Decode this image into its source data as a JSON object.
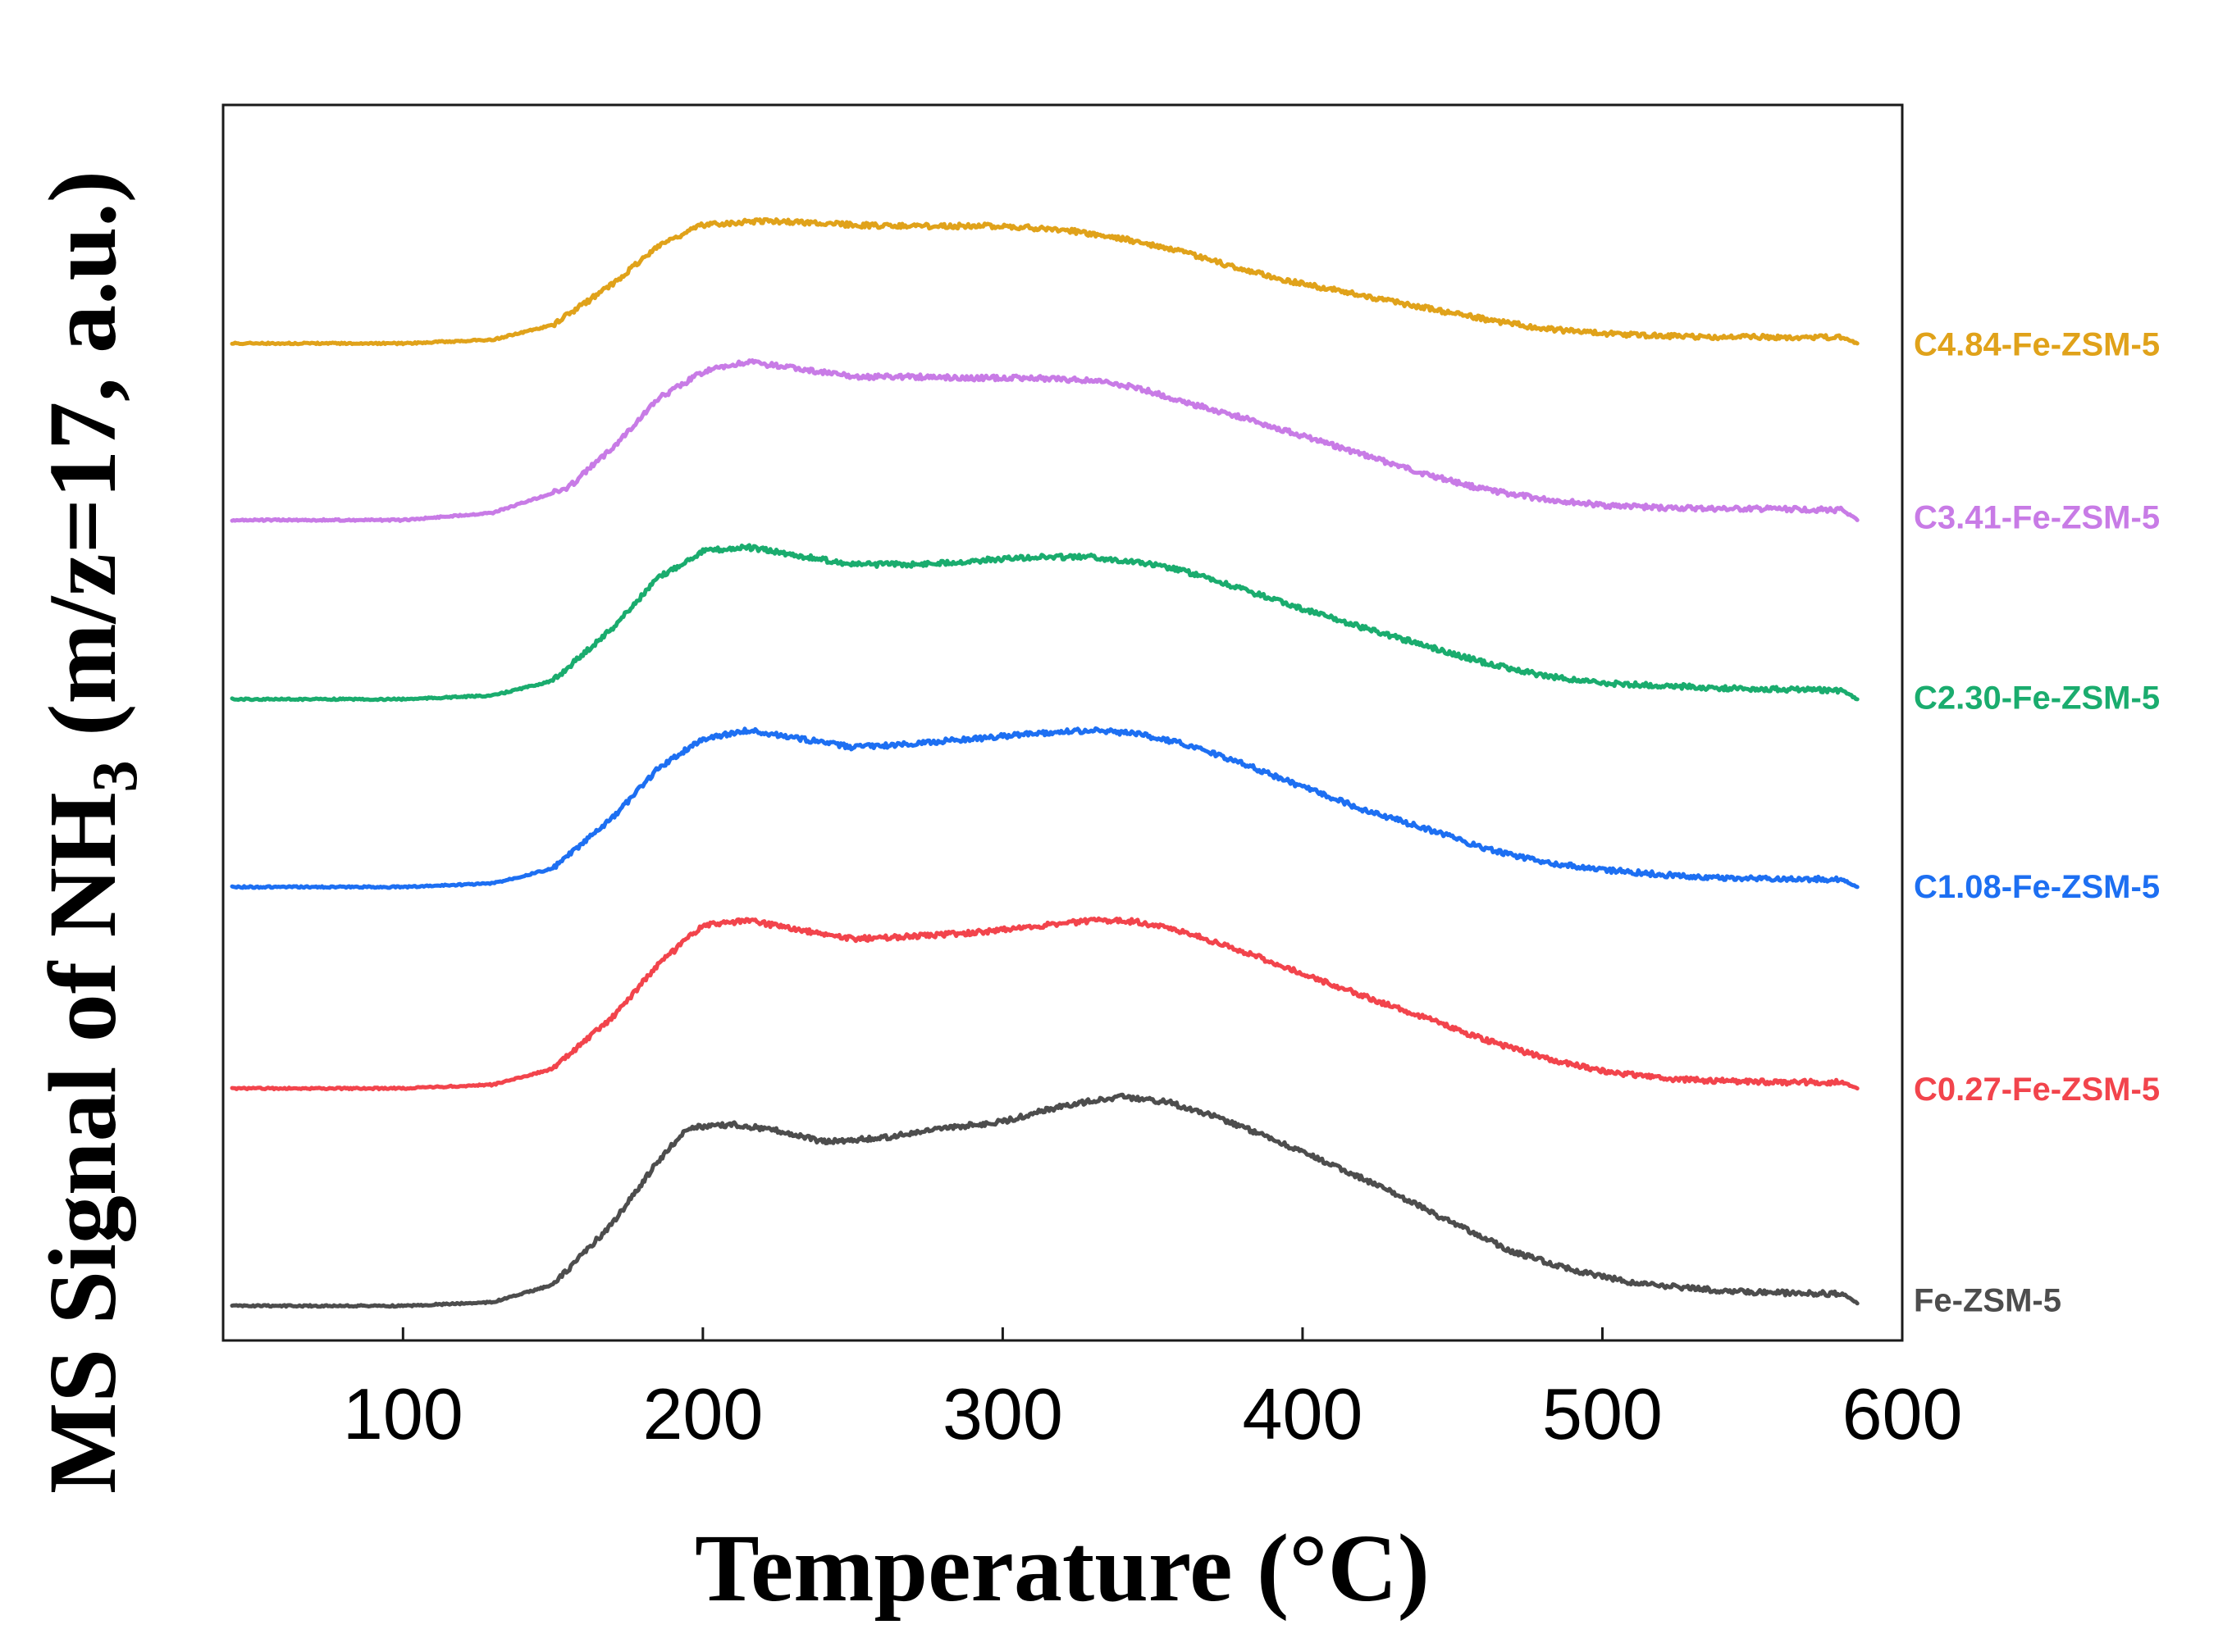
{
  "chart_data": {
    "type": "line",
    "xlabel": "Temperature (°C)",
    "ylabel_parts": [
      "MS Signal of  NH",
      "3",
      " (m/z=17, a.u.)"
    ],
    "xlim": [
      40,
      600
    ],
    "ylim": [
      0,
      10
    ],
    "xticks": [
      100,
      200,
      300,
      400,
      500,
      600
    ],
    "grid": false,
    "legend": "right-inline",
    "series": [
      {
        "name": "Fe-ZSM-5",
        "color": "#4d4d4d",
        "points": [
          [
            43,
            0.28
          ],
          [
            100,
            0.28
          ],
          [
            130,
            0.31
          ],
          [
            150,
            0.45
          ],
          [
            170,
            0.95
          ],
          [
            185,
            1.45
          ],
          [
            195,
            1.72
          ],
          [
            210,
            1.75
          ],
          [
            225,
            1.7
          ],
          [
            240,
            1.61
          ],
          [
            260,
            1.64
          ],
          [
            285,
            1.73
          ],
          [
            300,
            1.77
          ],
          [
            315,
            1.87
          ],
          [
            330,
            1.94
          ],
          [
            340,
            1.97
          ],
          [
            355,
            1.93
          ],
          [
            370,
            1.82
          ],
          [
            390,
            1.63
          ],
          [
            410,
            1.42
          ],
          [
            430,
            1.2
          ],
          [
            450,
            0.95
          ],
          [
            470,
            0.72
          ],
          [
            490,
            0.57
          ],
          [
            510,
            0.47
          ],
          [
            530,
            0.42
          ],
          [
            550,
            0.39
          ],
          [
            570,
            0.38
          ],
          [
            580,
            0.38
          ],
          [
            585,
            0.3
          ]
        ]
      },
      {
        "name": "C0.27-Fe-ZSM-5",
        "color": "#f2444c",
        "points": [
          [
            43,
            2.04
          ],
          [
            100,
            2.04
          ],
          [
            130,
            2.07
          ],
          [
            150,
            2.2
          ],
          [
            170,
            2.62
          ],
          [
            185,
            3.04
          ],
          [
            200,
            3.36
          ],
          [
            215,
            3.4
          ],
          [
            230,
            3.33
          ],
          [
            250,
            3.25
          ],
          [
            270,
            3.27
          ],
          [
            290,
            3.3
          ],
          [
            310,
            3.35
          ],
          [
            330,
            3.4
          ],
          [
            345,
            3.39
          ],
          [
            360,
            3.31
          ],
          [
            380,
            3.15
          ],
          [
            400,
            2.97
          ],
          [
            420,
            2.79
          ],
          [
            440,
            2.62
          ],
          [
            460,
            2.44
          ],
          [
            480,
            2.29
          ],
          [
            500,
            2.18
          ],
          [
            520,
            2.12
          ],
          [
            540,
            2.1
          ],
          [
            560,
            2.09
          ],
          [
            580,
            2.09
          ],
          [
            585,
            2.04
          ]
        ]
      },
      {
        "name": "C1.08-Fe-ZSM-5",
        "color": "#1d6ff2",
        "points": [
          [
            43,
            3.67
          ],
          [
            100,
            3.67
          ],
          [
            130,
            3.7
          ],
          [
            150,
            3.82
          ],
          [
            170,
            4.23
          ],
          [
            185,
            4.63
          ],
          [
            200,
            4.87
          ],
          [
            215,
            4.94
          ],
          [
            230,
            4.88
          ],
          [
            250,
            4.8
          ],
          [
            270,
            4.83
          ],
          [
            290,
            4.87
          ],
          [
            310,
            4.91
          ],
          [
            330,
            4.94
          ],
          [
            345,
            4.91
          ],
          [
            360,
            4.83
          ],
          [
            380,
            4.67
          ],
          [
            400,
            4.48
          ],
          [
            420,
            4.3
          ],
          [
            440,
            4.15
          ],
          [
            460,
            3.99
          ],
          [
            480,
            3.87
          ],
          [
            500,
            3.81
          ],
          [
            520,
            3.77
          ],
          [
            540,
            3.74
          ],
          [
            560,
            3.74
          ],
          [
            580,
            3.73
          ],
          [
            585,
            3.67
          ]
        ]
      },
      {
        "name": "C2.30-Fe-ZSM-5",
        "color": "#1aac6e",
        "points": [
          [
            43,
            5.19
          ],
          [
            100,
            5.19
          ],
          [
            130,
            5.22
          ],
          [
            150,
            5.34
          ],
          [
            170,
            5.77
          ],
          [
            185,
            6.17
          ],
          [
            200,
            6.39
          ],
          [
            215,
            6.42
          ],
          [
            230,
            6.36
          ],
          [
            250,
            6.28
          ],
          [
            270,
            6.28
          ],
          [
            290,
            6.31
          ],
          [
            310,
            6.34
          ],
          [
            330,
            6.34
          ],
          [
            345,
            6.3
          ],
          [
            360,
            6.23
          ],
          [
            380,
            6.08
          ],
          [
            400,
            5.92
          ],
          [
            420,
            5.77
          ],
          [
            440,
            5.63
          ],
          [
            460,
            5.49
          ],
          [
            480,
            5.38
          ],
          [
            500,
            5.32
          ],
          [
            520,
            5.3
          ],
          [
            540,
            5.28
          ],
          [
            560,
            5.27
          ],
          [
            580,
            5.26
          ],
          [
            585,
            5.19
          ]
        ]
      },
      {
        "name": "C3.41-Fe-ZSM-5",
        "color": "#c87be6",
        "points": [
          [
            43,
            6.64
          ],
          [
            100,
            6.64
          ],
          [
            130,
            6.7
          ],
          [
            155,
            6.9
          ],
          [
            170,
            7.23
          ],
          [
            185,
            7.62
          ],
          [
            200,
            7.84
          ],
          [
            215,
            7.92
          ],
          [
            230,
            7.87
          ],
          [
            250,
            7.8
          ],
          [
            270,
            7.8
          ],
          [
            290,
            7.79
          ],
          [
            310,
            7.79
          ],
          [
            330,
            7.77
          ],
          [
            345,
            7.71
          ],
          [
            360,
            7.6
          ],
          [
            380,
            7.47
          ],
          [
            400,
            7.32
          ],
          [
            420,
            7.17
          ],
          [
            440,
            7.02
          ],
          [
            460,
            6.89
          ],
          [
            480,
            6.81
          ],
          [
            500,
            6.76
          ],
          [
            520,
            6.74
          ],
          [
            540,
            6.73
          ],
          [
            560,
            6.73
          ],
          [
            580,
            6.72
          ],
          [
            585,
            6.64
          ]
        ]
      },
      {
        "name": "C4.84-Fe-ZSM-5",
        "color": "#e0a21a",
        "points": [
          [
            43,
            8.07
          ],
          [
            100,
            8.07
          ],
          [
            130,
            8.1
          ],
          [
            150,
            8.22
          ],
          [
            170,
            8.55
          ],
          [
            185,
            8.86
          ],
          [
            200,
            9.03
          ],
          [
            220,
            9.06
          ],
          [
            240,
            9.04
          ],
          [
            260,
            9.02
          ],
          [
            280,
            9.02
          ],
          [
            300,
            9.02
          ],
          [
            320,
            8.99
          ],
          [
            340,
            8.92
          ],
          [
            360,
            8.81
          ],
          [
            380,
            8.67
          ],
          [
            400,
            8.55
          ],
          [
            420,
            8.46
          ],
          [
            440,
            8.36
          ],
          [
            460,
            8.27
          ],
          [
            480,
            8.19
          ],
          [
            500,
            8.15
          ],
          [
            520,
            8.13
          ],
          [
            540,
            8.12
          ],
          [
            560,
            8.12
          ],
          [
            580,
            8.12
          ],
          [
            585,
            8.07
          ]
        ]
      }
    ]
  }
}
